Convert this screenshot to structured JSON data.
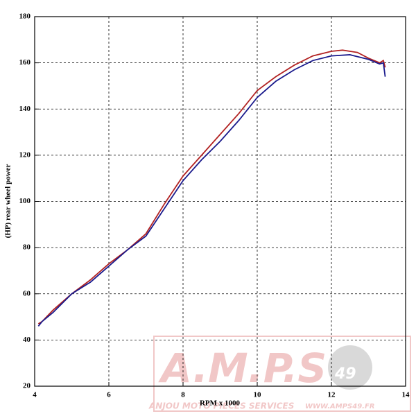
{
  "chart_data": {
    "type": "line",
    "x_label": "RPM x 1000",
    "y_label": "(HP) rear wheel power",
    "xlim": [
      4,
      14
    ],
    "xticks": [
      4,
      6,
      8,
      10,
      12,
      14
    ],
    "ylim": [
      20,
      180
    ],
    "yticks": [
      20,
      40,
      60,
      80,
      100,
      120,
      140,
      160,
      180
    ],
    "grid": true,
    "series": [
      {
        "color": "#b22222",
        "x": [
          4.1,
          4.2,
          4.5,
          5,
          5.5,
          6,
          6.5,
          7,
          7.5,
          8,
          8.5,
          9,
          9.5,
          10,
          10.5,
          11,
          11.5,
          12,
          12.3,
          12.7,
          13,
          13.3,
          13.4,
          13.45
        ],
        "values": [
          47,
          48,
          53,
          60,
          66,
          73,
          79,
          86,
          99,
          111,
          120,
          129,
          138,
          148,
          154,
          159,
          163,
          165,
          165.5,
          164.5,
          162,
          160,
          161,
          158
        ]
      },
      {
        "color": "#1a1a8c",
        "x": [
          4.1,
          4.2,
          4.5,
          5,
          5.5,
          6,
          6.5,
          7,
          7.5,
          8,
          8.5,
          9,
          9.5,
          10,
          10.5,
          11,
          11.5,
          12,
          12.5,
          13,
          13.3,
          13.4,
          13.45
        ],
        "values": [
          46,
          48,
          52,
          60,
          65,
          72,
          79,
          85,
          97,
          109,
          118,
          126,
          135,
          145,
          152,
          157,
          161,
          163,
          163.5,
          161.5,
          159.5,
          160,
          154
        ]
      }
    ]
  },
  "watermark": {
    "logo": "A.M.P.S",
    "number": "49",
    "tagline": "ANJOU MOTO PIECES SERVICES",
    "url": "WWW.AMPS49.FR"
  }
}
